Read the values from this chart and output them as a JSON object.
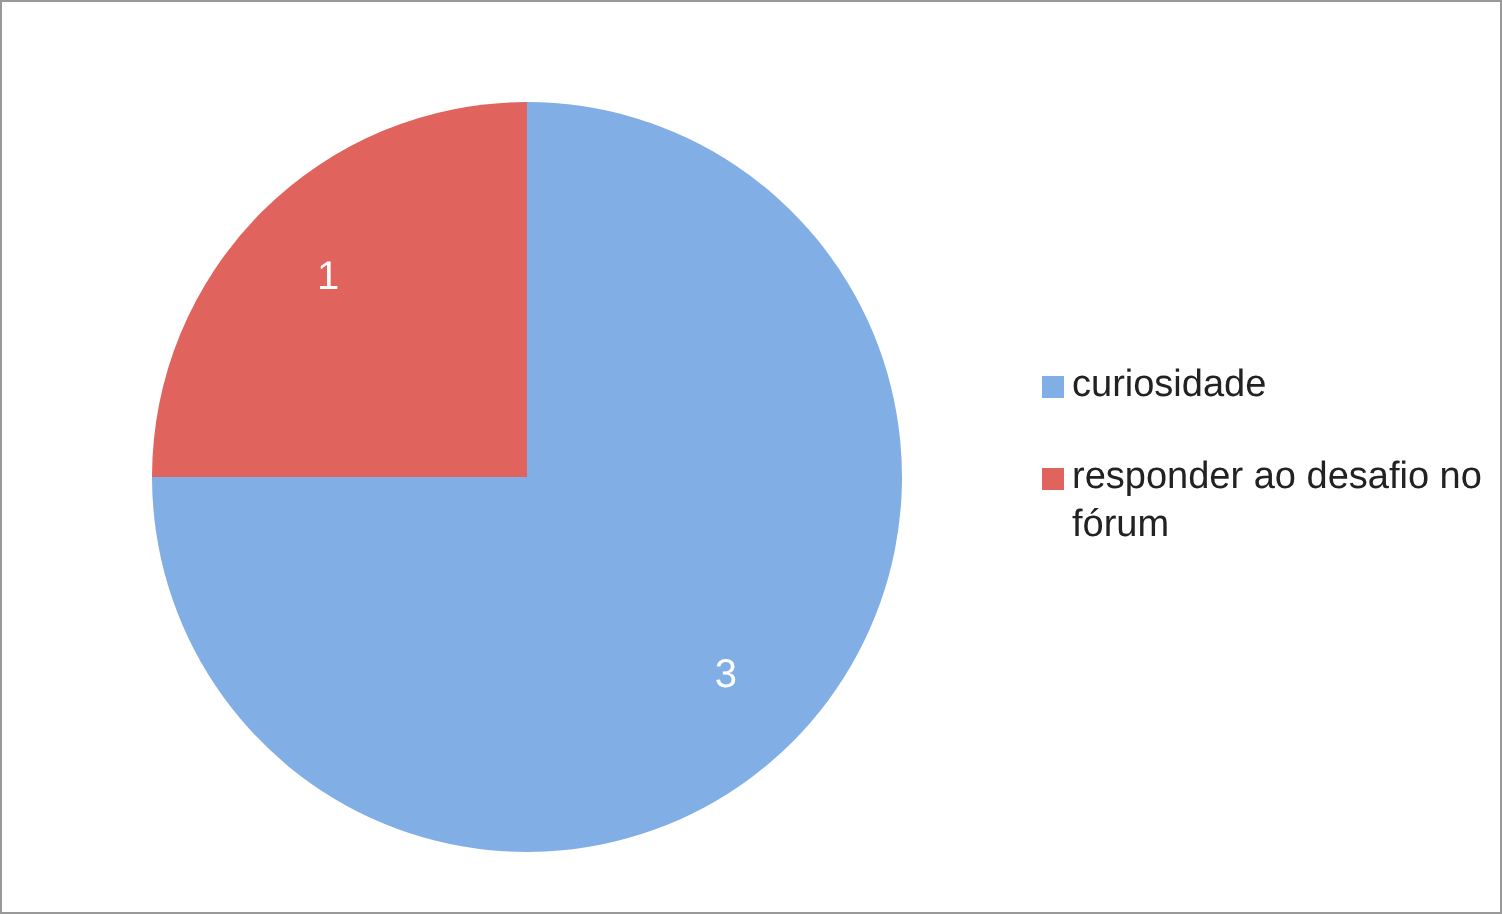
{
  "chart_data": {
    "type": "pie",
    "categories": [
      "curiosidade",
      "responder ao desafio no fórum"
    ],
    "values": [
      3,
      1
    ],
    "colors": [
      "#82aee6",
      "#e0635d"
    ],
    "data_labels": true,
    "legend": "right"
  }
}
